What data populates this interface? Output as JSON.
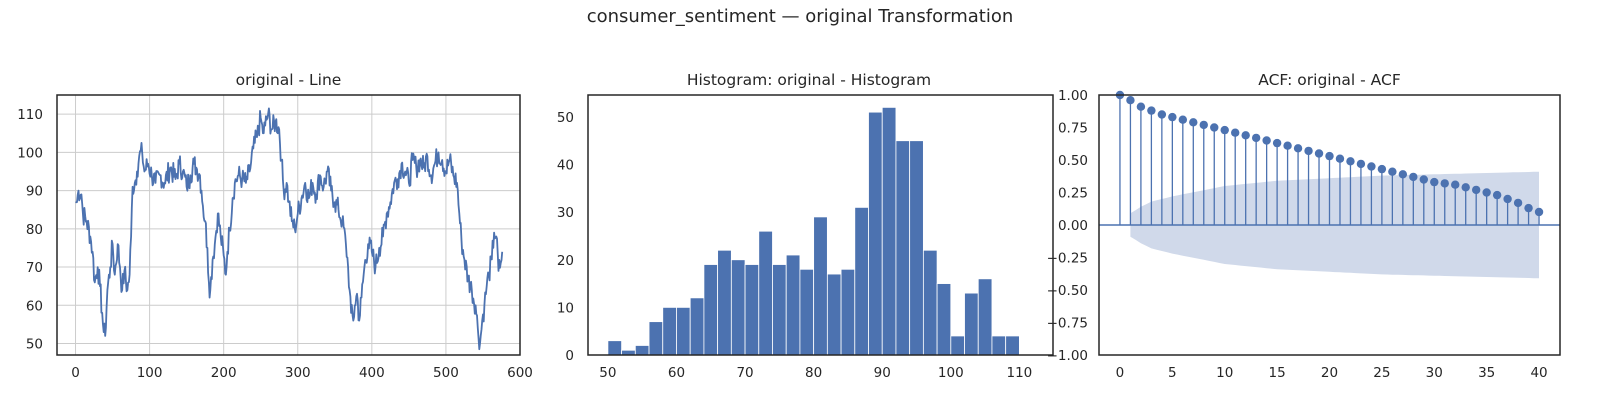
{
  "figure": {
    "suptitle": "consumer_sentiment — original Transformation",
    "colors": {
      "line": "#4c72b0",
      "grid": "#cccccc",
      "band": "#d0d9ea",
      "axis": "#262626"
    }
  },
  "chart_data": [
    {
      "type": "line",
      "title": "original - Line",
      "xlim": [
        -25,
        600
      ],
      "ylim": [
        47,
        115
      ],
      "xticks": [
        0,
        100,
        200,
        300,
        400,
        500,
        600
      ],
      "yticks": [
        50,
        60,
        70,
        80,
        90,
        100,
        110
      ],
      "grid": true,
      "anchors": [
        [
          0,
          87
        ],
        [
          2,
          87
        ],
        [
          4,
          90
        ],
        [
          8,
          89
        ],
        [
          10,
          84
        ],
        [
          15,
          82
        ],
        [
          20,
          78
        ],
        [
          23,
          74
        ],
        [
          26,
          66
        ],
        [
          30,
          70
        ],
        [
          33,
          65
        ],
        [
          36,
          58
        ],
        [
          38,
          53
        ],
        [
          40,
          52
        ],
        [
          43,
          64
        ],
        [
          47,
          70
        ],
        [
          50,
          76
        ],
        [
          53,
          68
        ],
        [
          57,
          76
        ],
        [
          60,
          70
        ],
        [
          63,
          64
        ],
        [
          66,
          69
        ],
        [
          70,
          64
        ],
        [
          73,
          68
        ],
        [
          75,
          78
        ],
        [
          77,
          91
        ],
        [
          80,
          92
        ],
        [
          83,
          95
        ],
        [
          86,
          99
        ],
        [
          90,
          100
        ],
        [
          93,
          95
        ],
        [
          98,
          97
        ],
        [
          103,
          94
        ],
        [
          108,
          92
        ],
        [
          115,
          94
        ],
        [
          120,
          92
        ],
        [
          128,
          96
        ],
        [
          135,
          93
        ],
        [
          140,
          97
        ],
        [
          145,
          95
        ],
        [
          150,
          91
        ],
        [
          155,
          94
        ],
        [
          160,
          97
        ],
        [
          163,
          96
        ],
        [
          168,
          94
        ],
        [
          170,
          90
        ],
        [
          172,
          86
        ],
        [
          175,
          82
        ],
        [
          178,
          75
        ],
        [
          180,
          66
        ],
        [
          182,
          64
        ],
        [
          185,
          72
        ],
        [
          188,
          76
        ],
        [
          192,
          84
        ],
        [
          196,
          78
        ],
        [
          200,
          73
        ],
        [
          203,
          68
        ],
        [
          205,
          74
        ],
        [
          208,
          80
        ],
        [
          212,
          88
        ],
        [
          215,
          92
        ],
        [
          220,
          94
        ],
        [
          225,
          93
        ],
        [
          230,
          92
        ],
        [
          235,
          95
        ],
        [
          240,
          101
        ],
        [
          245,
          104
        ],
        [
          250,
          109
        ],
        [
          253,
          105
        ],
        [
          256,
          107
        ],
        [
          260,
          110
        ],
        [
          265,
          106
        ],
        [
          270,
          108
        ],
        [
          275,
          106
        ],
        [
          278,
          98
        ],
        [
          281,
          90
        ],
        [
          285,
          92
        ],
        [
          288,
          87
        ],
        [
          292,
          82
        ],
        [
          296,
          80
        ],
        [
          300,
          84
        ],
        [
          305,
          88
        ],
        [
          310,
          92
        ],
        [
          315,
          88
        ],
        [
          320,
          92
        ],
        [
          325,
          89
        ],
        [
          330,
          94
        ],
        [
          335,
          91
        ],
        [
          340,
          95
        ],
        [
          345,
          90
        ],
        [
          350,
          87
        ],
        [
          355,
          85
        ],
        [
          360,
          82
        ],
        [
          365,
          76
        ],
        [
          368,
          70
        ],
        [
          370,
          64
        ],
        [
          372,
          58
        ],
        [
          375,
          56
        ],
        [
          377,
          60
        ],
        [
          380,
          63
        ],
        [
          383,
          56
        ],
        [
          386,
          62
        ],
        [
          390,
          70
        ],
        [
          395,
          76
        ],
        [
          400,
          74
        ],
        [
          405,
          70
        ],
        [
          410,
          75
        ],
        [
          415,
          78
        ],
        [
          420,
          84
        ],
        [
          425,
          87
        ],
        [
          430,
          92
        ],
        [
          435,
          93
        ],
        [
          440,
          97
        ],
        [
          445,
          95
        ],
        [
          450,
          92
        ],
        [
          455,
          98
        ],
        [
          460,
          96
        ],
        [
          465,
          98
        ],
        [
          470,
          96
        ],
        [
          475,
          99
        ],
        [
          480,
          94
        ],
        [
          485,
          97
        ],
        [
          490,
          100
        ],
        [
          495,
          98
        ],
        [
          500,
          95
        ],
        [
          505,
          98
        ],
        [
          510,
          94
        ],
        [
          515,
          92
        ],
        [
          518,
          84
        ],
        [
          521,
          77
        ],
        [
          525,
          72
        ],
        [
          530,
          67
        ],
        [
          535,
          64
        ],
        [
          540,
          60
        ],
        [
          543,
          54
        ],
        [
          546,
          50
        ],
        [
          549,
          56
        ],
        [
          552,
          60
        ],
        [
          555,
          65
        ],
        [
          558,
          68
        ],
        [
          562,
          72
        ],
        [
          565,
          79
        ],
        [
          568,
          78
        ],
        [
          571,
          69
        ],
        [
          574,
          71
        ],
        [
          576,
          74
        ]
      ]
    },
    {
      "type": "bar",
      "title": "Histogram: original - Histogram",
      "bin_start": 50,
      "bin_width": 2,
      "xlim": [
        47.1,
        114.9
      ],
      "ylim": [
        0,
        54.6
      ],
      "xticks": [
        50,
        60,
        70,
        80,
        90,
        100,
        110
      ],
      "yticks": [
        0,
        10,
        20,
        30,
        40,
        50
      ],
      "values": [
        3,
        1,
        2,
        7,
        10,
        10,
        12,
        19,
        22,
        20,
        19,
        26,
        19,
        21,
        18,
        29,
        17,
        18,
        31,
        51,
        52,
        45,
        45,
        22,
        15,
        4,
        13,
        16,
        4,
        4
      ]
    },
    {
      "type": "scatter",
      "title": "ACF: original - ACF",
      "xlim": [
        -2,
        42
      ],
      "ylim": [
        -1,
        1
      ],
      "xticks": [
        0,
        5,
        10,
        15,
        20,
        25,
        30,
        35,
        40
      ],
      "yticks": [
        -1.0,
        -0.75,
        -0.5,
        -0.25,
        0.0,
        0.25,
        0.5,
        0.75,
        1.0
      ],
      "ytick_labels": [
        "−1.00",
        "−0.75",
        "−0.50",
        "−0.25",
        "0.00",
        "0.25",
        "0.50",
        "0.75",
        "1.00"
      ],
      "lags": [
        0,
        1,
        2,
        3,
        4,
        5,
        6,
        7,
        8,
        9,
        10,
        11,
        12,
        13,
        14,
        15,
        16,
        17,
        18,
        19,
        20,
        21,
        22,
        23,
        24,
        25,
        26,
        27,
        28,
        29,
        30,
        31,
        32,
        33,
        34,
        35,
        36,
        37,
        38,
        39,
        40
      ],
      "acf": [
        1.0,
        0.96,
        0.91,
        0.88,
        0.85,
        0.83,
        0.81,
        0.79,
        0.77,
        0.75,
        0.73,
        0.71,
        0.69,
        0.67,
        0.65,
        0.63,
        0.61,
        0.59,
        0.57,
        0.55,
        0.53,
        0.51,
        0.49,
        0.47,
        0.45,
        0.43,
        0.41,
        0.39,
        0.37,
        0.35,
        0.33,
        0.32,
        0.31,
        0.29,
        0.27,
        0.25,
        0.23,
        0.2,
        0.17,
        0.13,
        0.1
      ],
      "confint_lags": [
        1,
        2,
        3,
        5,
        10,
        15,
        20,
        25,
        30,
        35,
        40
      ],
      "confint": [
        0.09,
        0.14,
        0.18,
        0.22,
        0.3,
        0.34,
        0.36,
        0.38,
        0.39,
        0.4,
        0.41
      ]
    }
  ]
}
